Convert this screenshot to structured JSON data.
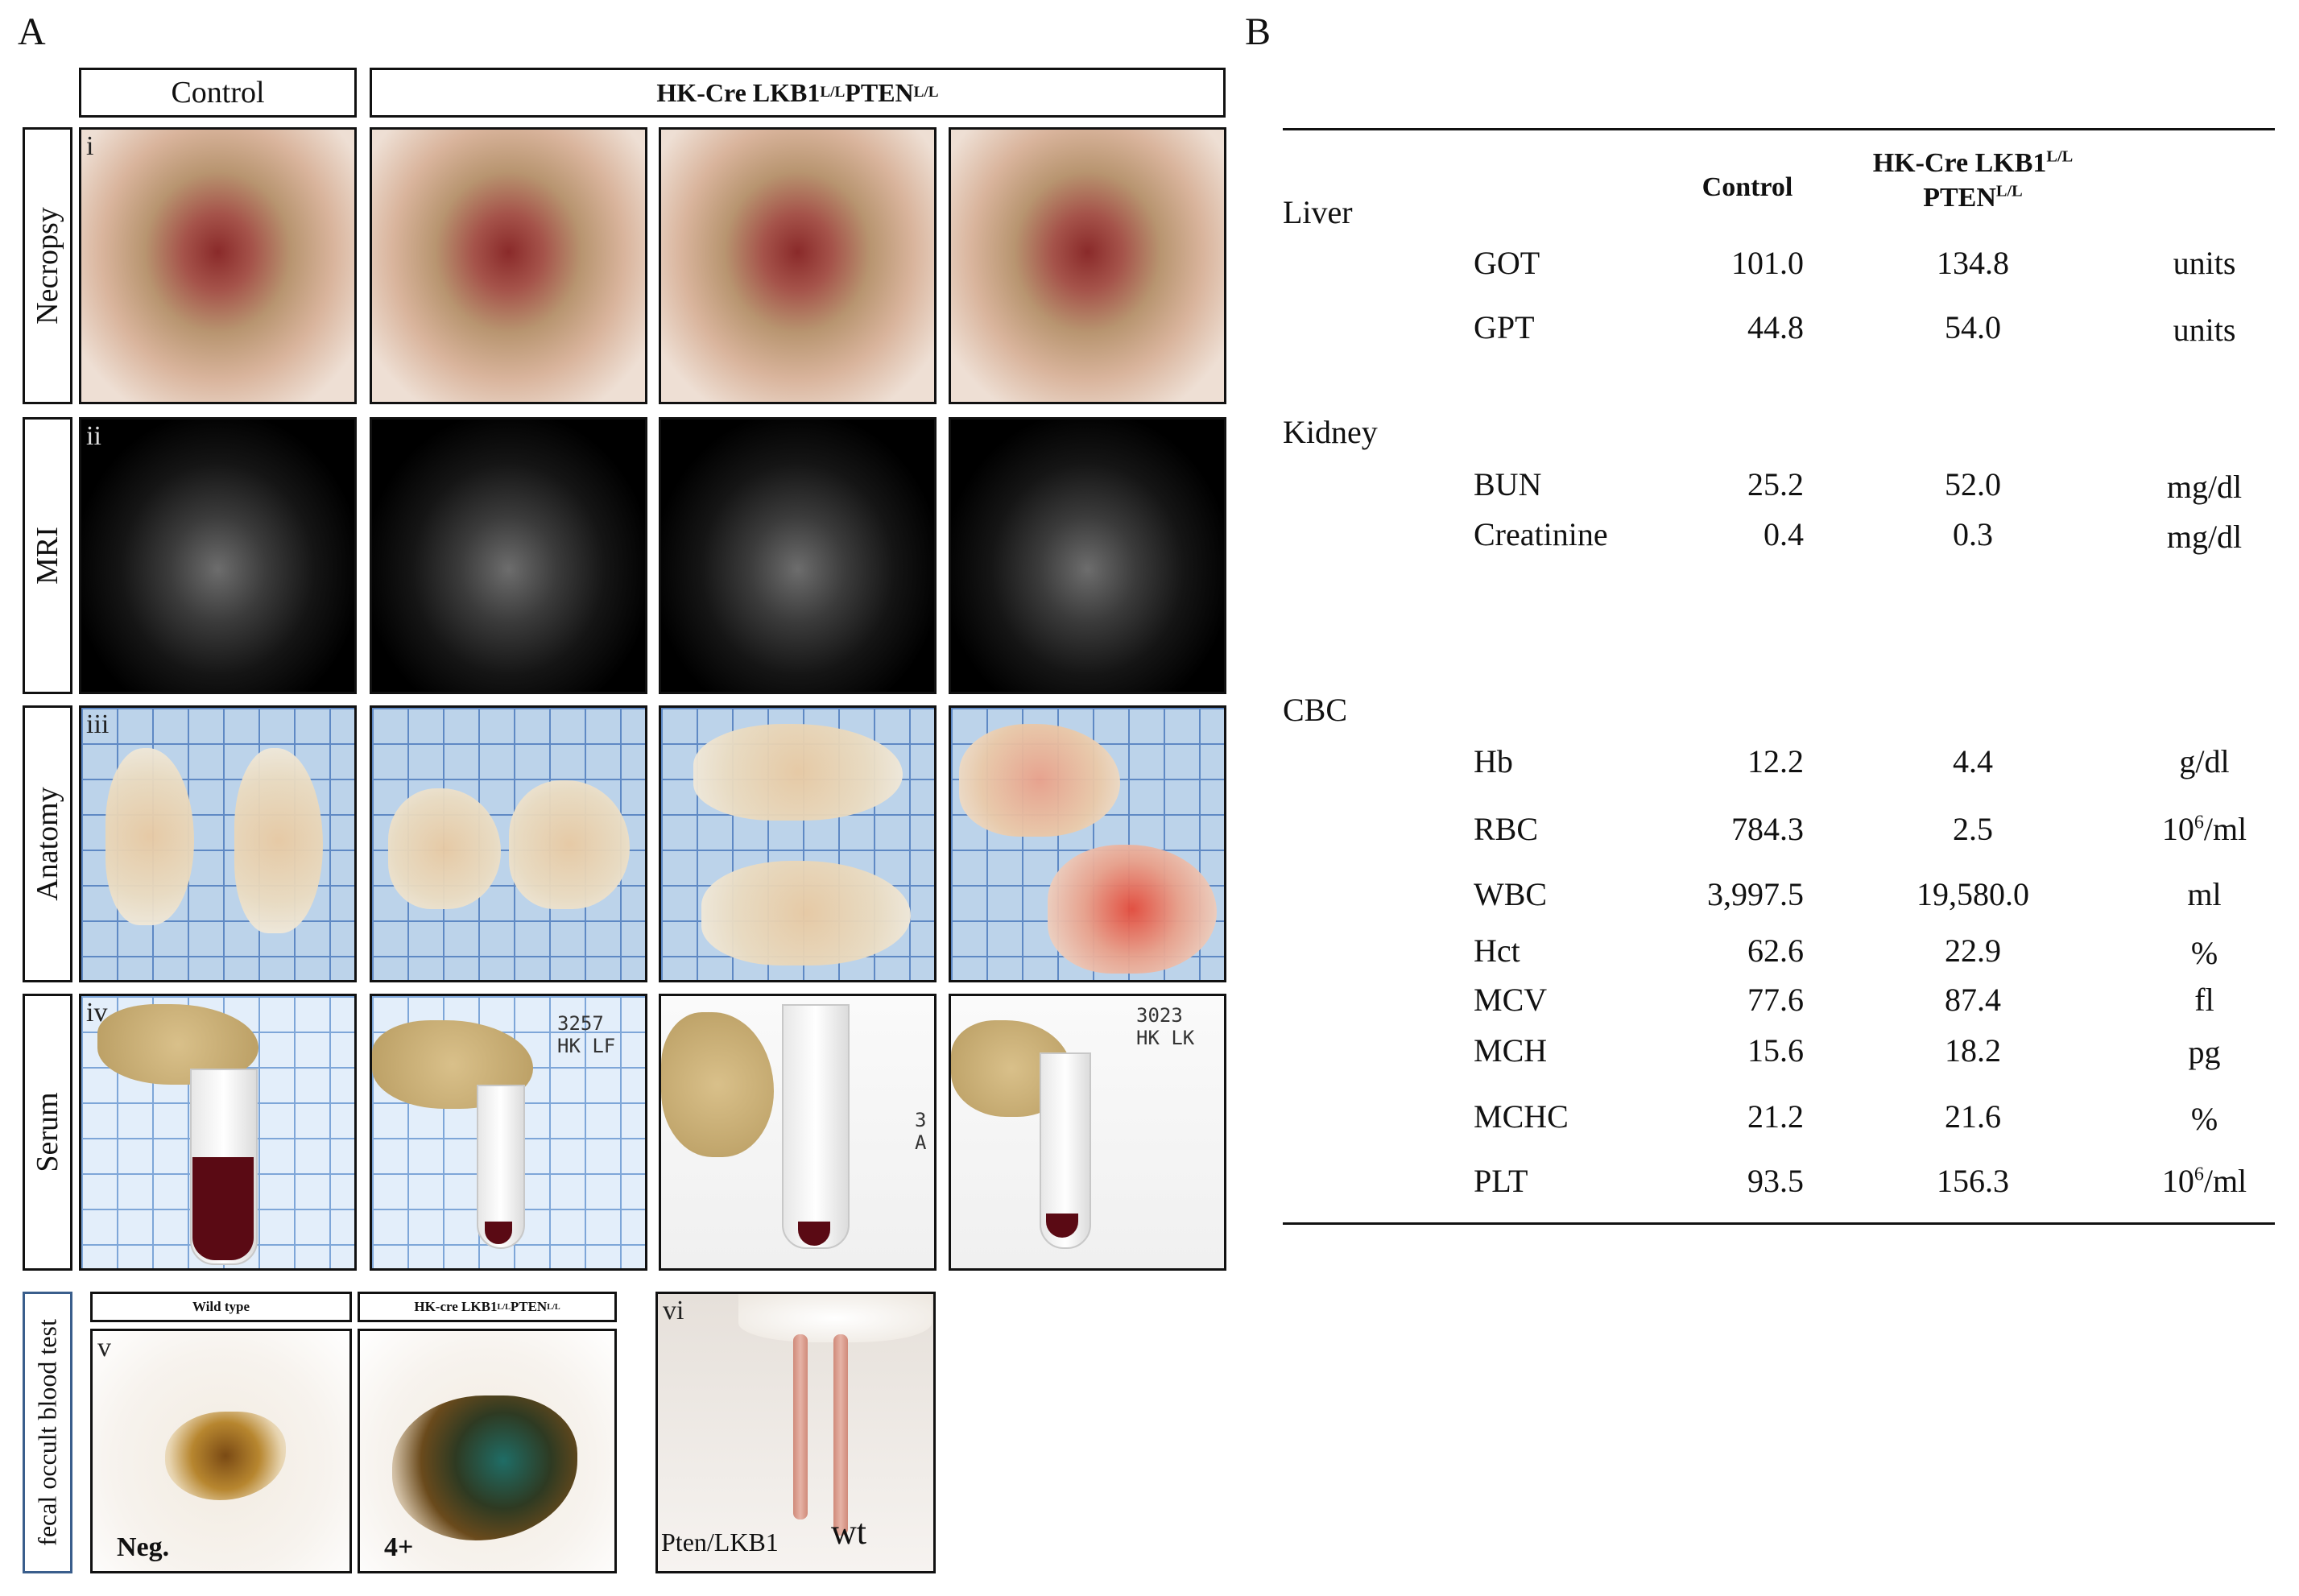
{
  "panel_a": {
    "letter": "A",
    "col_headers": {
      "control": "Control",
      "mutant_prefix": "HK-Cre LKB1",
      "mutant_sup1": "L/L",
      "mutant_mid": " PTEN",
      "mutant_sup2": "L/L"
    },
    "rows": [
      {
        "label": "Necropsy",
        "tag": "i"
      },
      {
        "label": "MRI",
        "tag": "ii"
      },
      {
        "label": "Anatomy",
        "tag": "iii"
      },
      {
        "label": "Serum",
        "tag": "iv"
      }
    ],
    "serum_notes": [
      "3257\nHK LF",
      "3\nA",
      "3023\nHK LK"
    ],
    "fobt": {
      "side_label": "fecal occult blood test",
      "tag": "v",
      "wild_type": "Wild type",
      "mutant_prefix": "HK-cre  LKB1",
      "mutant_sup1": "L/L",
      "mutant_mid": " PTEN",
      "mutant_sup2": "L/L",
      "result_neg": "Neg.",
      "result_pos": "4+"
    },
    "tails": {
      "tag": "vi",
      "left_label": "Pten/LKB1",
      "right_label": "wt"
    }
  },
  "panel_b": {
    "letter": "B",
    "headers": {
      "control": "Control",
      "mutant_line1_prefix": "HK-Cre LKB1",
      "mutant_line1_sup": "L/L",
      "mutant_line2_prefix": "PTEN",
      "mutant_line2_sup": "L/L"
    },
    "groups": [
      {
        "name": "Liver",
        "rows": [
          {
            "test": "GOT",
            "control": "101.0",
            "mutant": "134.8",
            "unit": "units"
          },
          {
            "test": "GPT",
            "control": "44.8",
            "mutant": "54.0",
            "unit": "units"
          }
        ]
      },
      {
        "name": "Kidney",
        "rows": [
          {
            "test": "BUN",
            "control": "25.2",
            "mutant": "52.0",
            "unit": "mg/dl"
          },
          {
            "test": "Creatinine",
            "control": "0.4",
            "mutant": "0.3",
            "unit": "mg/dl"
          }
        ]
      },
      {
        "name": "CBC",
        "rows": [
          {
            "test": "Hb",
            "control": "12.2",
            "mutant": "4.4",
            "unit": "g/dl"
          },
          {
            "test": "RBC",
            "control": "784.3",
            "mutant": "2.5",
            "unit_base": "10",
            "unit_sup": "6",
            "unit_tail": "/ml"
          },
          {
            "test": "WBC",
            "control": "3,997.5",
            "mutant": "19,580.0",
            "unit": "ml"
          },
          {
            "test": "Hct",
            "control": "62.6",
            "mutant": "22.9",
            "unit": "%"
          },
          {
            "test": "MCV",
            "control": "77.6",
            "mutant": "87.4",
            "unit": "fl"
          },
          {
            "test": "MCH",
            "control": "15.6",
            "mutant": "18.2",
            "unit": "pg"
          },
          {
            "test": "MCHC",
            "control": "21.2",
            "mutant": "21.6",
            "unit": "%"
          },
          {
            "test": "PLT",
            "control": "93.5",
            "mutant": "156.3",
            "unit_base": "10",
            "unit_sup": "6",
            "unit_tail": "/ml"
          }
        ]
      }
    ]
  }
}
